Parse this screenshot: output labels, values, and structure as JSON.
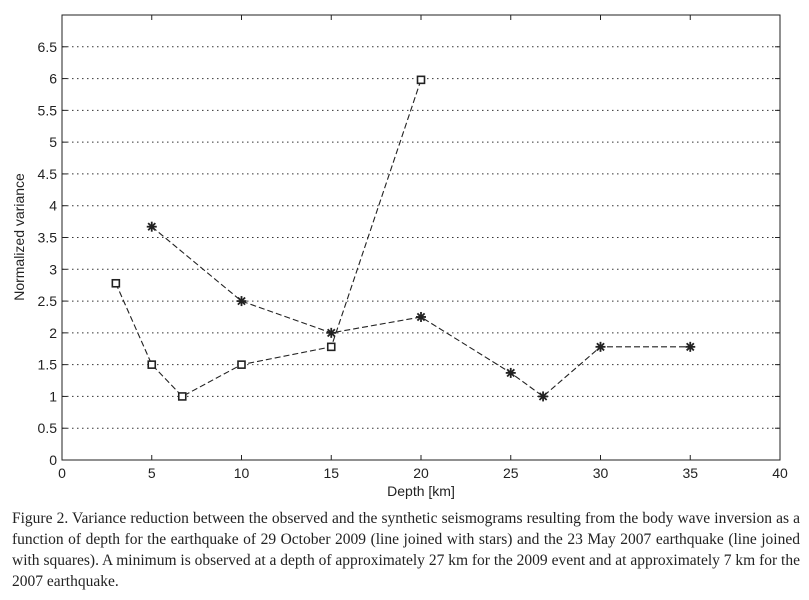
{
  "caption": "Figure 2. Variance reduction between the observed and the synthetic seismograms resulting from the body wave inversion as a function of depth for the earthquake of 29 October 2009 (line joined with stars) and the 23 May 2007 earthquake (line joined with squares). A minimum is observed at a depth of approximately 27 km for the 2009 event and at approximately 7 km for the 2007 earthquake.",
  "chart_data": {
    "type": "line",
    "title": "",
    "xlabel": "Depth [km]",
    "ylabel": "Normalized variance",
    "xlim": [
      0,
      40
    ],
    "ylim": [
      0,
      7
    ],
    "x_ticks": [
      0,
      5,
      10,
      15,
      20,
      25,
      30,
      35,
      40
    ],
    "y_ticks": [
      0,
      0.5,
      1,
      1.5,
      2,
      2.5,
      3,
      3.5,
      4,
      4.5,
      5,
      5.5,
      6,
      6.5
    ],
    "y_tick_labels": [
      "0",
      "0.5",
      "1",
      "1.5",
      "2",
      "2.5",
      "3",
      "3.5",
      "4",
      "4.5",
      "5",
      "5.5",
      "6",
      "6.5"
    ],
    "grid": "horizontal dotted",
    "series": [
      {
        "marker": "star",
        "line_style": "dashed",
        "color": "#222222",
        "x": [
          5,
          10,
          15,
          20,
          25,
          26.8,
          30,
          35
        ],
        "y": [
          3.67,
          2.5,
          2.0,
          2.25,
          1.37,
          1.0,
          1.78,
          1.78
        ]
      },
      {
        "marker": "square",
        "line_style": "dashed",
        "color": "#222222",
        "x": [
          3,
          5,
          6.7,
          10,
          15,
          20
        ],
        "y": [
          2.78,
          1.5,
          1.0,
          1.5,
          1.78,
          5.98
        ]
      }
    ]
  }
}
